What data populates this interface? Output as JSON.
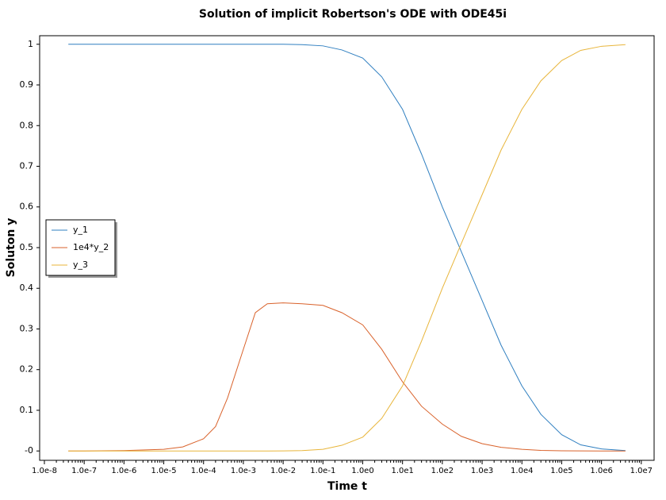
{
  "chart_data": {
    "type": "line",
    "title": "Solution of implicit Robertson's ODE with ODE45i",
    "xlabel": "Time t",
    "ylabel": "Soluton y",
    "xscale": "log",
    "x": [
      4e-08,
      1e-07,
      1e-06,
      1e-05,
      3e-05,
      0.0001,
      0.0002,
      0.0004,
      0.001,
      0.002,
      0.004,
      0.01,
      0.03,
      0.1,
      0.3,
      1,
      3,
      10,
      30,
      100,
      300,
      1000,
      3000,
      10000,
      30000,
      100000,
      300000,
      1000000,
      4000000
    ],
    "series": [
      {
        "name": "y_1",
        "color": "#2f7fc0",
        "values": [
          1,
          1,
          1,
          1,
          1,
          1,
          1,
          1,
          1,
          1,
          1,
          0.9999,
          0.999,
          0.996,
          0.986,
          0.966,
          0.92,
          0.84,
          0.73,
          0.6,
          0.49,
          0.37,
          0.26,
          0.16,
          0.09,
          0.04,
          0.015,
          0.005,
          0.001
        ]
      },
      {
        "name": "1e4*y_2",
        "color": "#d9622b",
        "values": [
          0,
          0,
          0.001,
          0.004,
          0.01,
          0.03,
          0.06,
          0.13,
          0.25,
          0.34,
          0.362,
          0.364,
          0.362,
          0.358,
          0.34,
          0.31,
          0.25,
          0.17,
          0.11,
          0.066,
          0.036,
          0.018,
          0.009,
          0.004,
          0.0015,
          0.0005,
          0.0002,
          0,
          0
        ]
      },
      {
        "name": "y_3",
        "color": "#e8b53a",
        "values": [
          0,
          0,
          0,
          0,
          0,
          0,
          0,
          0,
          0,
          0,
          0,
          0.0001,
          0.001,
          0.004,
          0.014,
          0.034,
          0.08,
          0.16,
          0.27,
          0.4,
          0.51,
          0.63,
          0.74,
          0.84,
          0.91,
          0.96,
          0.985,
          0.995,
          0.999
        ]
      }
    ],
    "xlim": [
      7.6e-09,
      21000000.0
    ],
    "xticks": [
      {
        "value": 1e-08,
        "label": "1.0e-8"
      },
      {
        "value": 1e-07,
        "label": "1.0e-7"
      },
      {
        "value": 1e-06,
        "label": "1.0e-6"
      },
      {
        "value": 1e-05,
        "label": "1.0e-5"
      },
      {
        "value": 0.0001,
        "label": "1.0e-4"
      },
      {
        "value": 0.001,
        "label": "1.0e-3"
      },
      {
        "value": 0.01,
        "label": "1.0e-2"
      },
      {
        "value": 0.1,
        "label": "1.0e-1"
      },
      {
        "value": 1,
        "label": "1.0e0"
      },
      {
        "value": 10,
        "label": "1.0e1"
      },
      {
        "value": 100,
        "label": "1.0e2"
      },
      {
        "value": 1000,
        "label": "1.0e3"
      },
      {
        "value": 10000,
        "label": "1.0e4"
      },
      {
        "value": 100000,
        "label": "1.0e5"
      },
      {
        "value": 1000000,
        "label": "1.0e6"
      },
      {
        "value": 10000000,
        "label": "1.0e7"
      }
    ],
    "ylim": [
      -0.023,
      1.021
    ],
    "yticks": [
      {
        "value": 0,
        "label": "-0"
      },
      0.1,
      0.2,
      0.3,
      0.4,
      0.5,
      0.6,
      0.7,
      0.8,
      0.9,
      1
    ],
    "grid": false,
    "legend": "left"
  }
}
